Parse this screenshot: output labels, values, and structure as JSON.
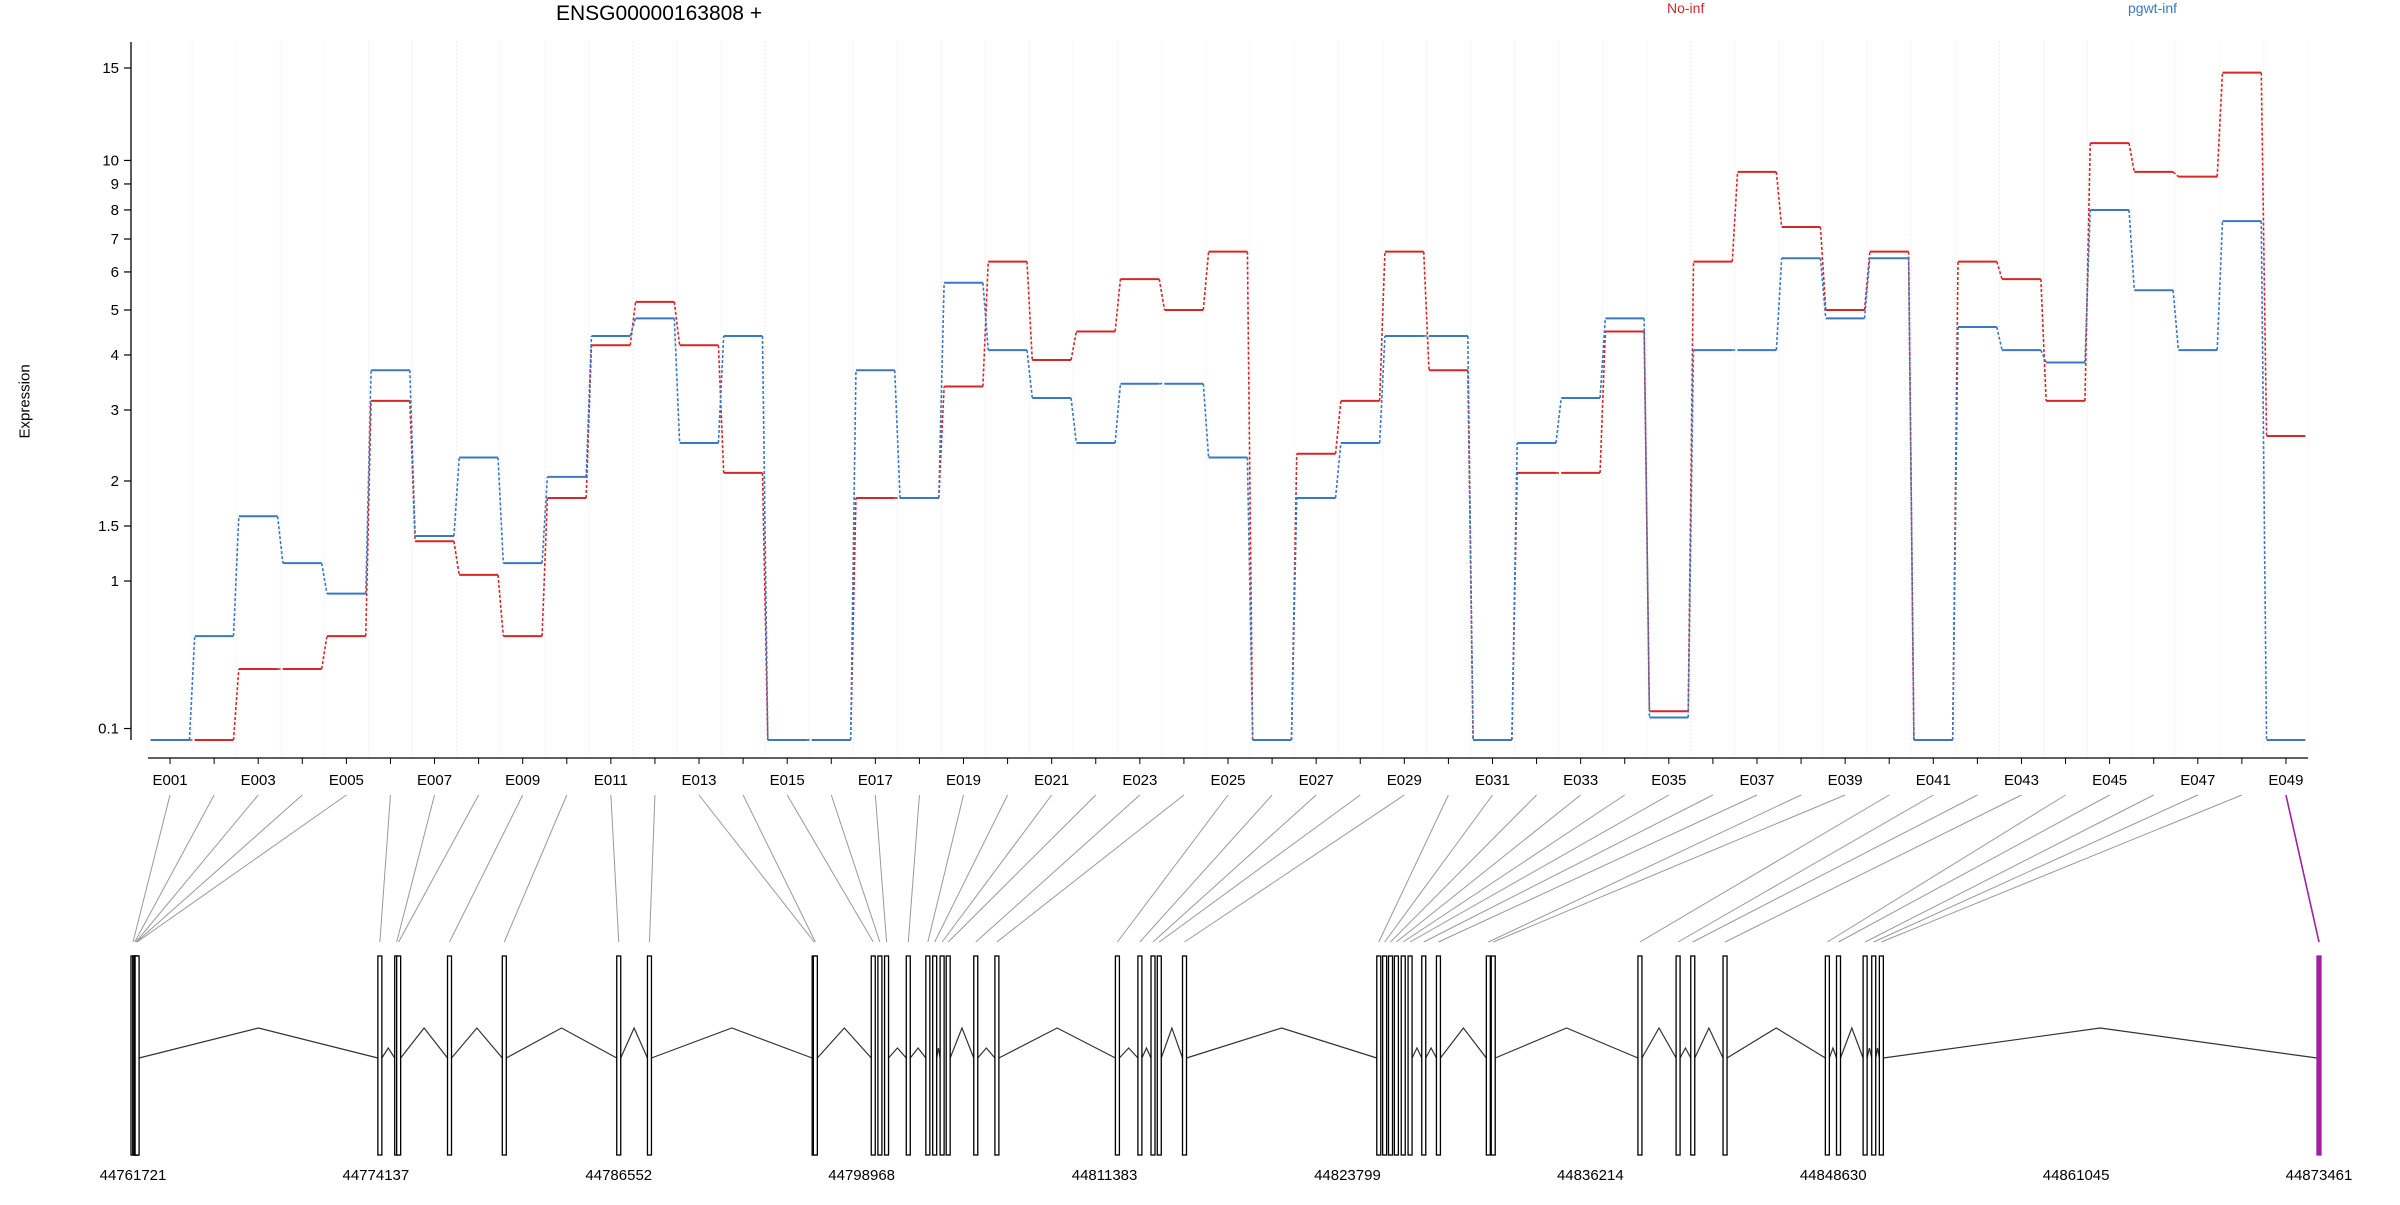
{
  "chart_data": {
    "type": "line",
    "title": "ENSG00000163808 +",
    "ylabel": "Expression",
    "xlabel": "",
    "y_scale": "log1p",
    "y_ticks": [
      0.1,
      1,
      1.5,
      2,
      3,
      4,
      5,
      6,
      7,
      8,
      9,
      10,
      15
    ],
    "exon_tick_labels": [
      "E001",
      "E003",
      "E005",
      "E007",
      "E009",
      "E011",
      "E013",
      "E015",
      "E017",
      "E019",
      "E021",
      "E023",
      "E025",
      "E027",
      "E029",
      "E031",
      "E033",
      "E035",
      "E037",
      "E039",
      "E041",
      "E043",
      "E045",
      "E047",
      "E049"
    ],
    "exons": [
      "E001",
      "E002",
      "E003",
      "E004",
      "E005",
      "E006",
      "E007",
      "E008",
      "E009",
      "E010",
      "E011",
      "E012",
      "E013",
      "E014",
      "E015",
      "E016",
      "E017",
      "E018",
      "E019",
      "E020",
      "E021",
      "E022",
      "E023",
      "E024",
      "E025",
      "E026",
      "E027",
      "E028",
      "E029",
      "E030",
      "E031",
      "E032",
      "E033",
      "E034",
      "E035",
      "E036",
      "E037",
      "E038",
      "E039",
      "E040",
      "E041",
      "E042",
      "E043",
      "E044",
      "E045",
      "E046",
      "E047",
      "E048",
      "E049"
    ],
    "series": [
      {
        "name": "No-inf",
        "color": "#d62728",
        "values": [
          0.05,
          0.05,
          0.4,
          0.4,
          0.6,
          3.15,
          1.35,
          1.05,
          0.6,
          1.8,
          4.2,
          5.2,
          4.2,
          2.1,
          0.05,
          0.05,
          1.8,
          1.8,
          3.4,
          6.3,
          3.9,
          4.5,
          5.8,
          5.0,
          6.6,
          0.05,
          2.35,
          3.15,
          6.6,
          3.7,
          0.05,
          2.1,
          2.1,
          4.5,
          0.18,
          6.3,
          9.5,
          7.4,
          5.0,
          6.6,
          0.05,
          6.3,
          5.8,
          3.15,
          10.8,
          9.5,
          9.3,
          14.7,
          2.6
        ]
      },
      {
        "name": "pgwt-inf",
        "color": "#3a78c3",
        "values": [
          0.05,
          0.6,
          1.6,
          1.15,
          0.9,
          3.7,
          1.4,
          2.3,
          1.15,
          2.05,
          4.4,
          4.8,
          2.5,
          4.4,
          0.05,
          0.05,
          3.7,
          1.8,
          5.7,
          4.1,
          3.2,
          2.5,
          3.45,
          3.45,
          2.3,
          0.05,
          1.8,
          2.5,
          4.4,
          4.4,
          0.05,
          2.5,
          3.2,
          4.8,
          0.15,
          4.1,
          4.1,
          6.4,
          4.8,
          6.4,
          0.05,
          4.6,
          4.1,
          3.85,
          8.0,
          5.5,
          4.1,
          7.6,
          0.05
        ]
      }
    ],
    "genomic_coordinates": [
      "44761721",
      "44774137",
      "44786552",
      "44798968",
      "44811383",
      "44823799",
      "44836214",
      "44848630",
      "44861045",
      "44873461"
    ],
    "genomic_range": [
      44761721,
      44873461
    ],
    "exon_positions": [
      44761721,
      44761810,
      44761870,
      44761900,
      44761930,
      44774340,
      44775200,
      44775300,
      44777900,
      44780700,
      44786550,
      44788120,
      44796540,
      44796600,
      44799560,
      44799900,
      44800240,
      44801350,
      44802350,
      44802700,
      44803080,
      44803390,
      44804800,
      44805880,
      44812040,
      44813190,
      44813860,
      44814180,
      44815470,
      44825400,
      44825700,
      44826000,
      44826300,
      44826650,
      44827000,
      44827700,
      44828450,
      44831000,
      44831250,
      44838750,
      44840700,
      44841450,
      44843100,
      44848330,
      44848900,
      44850260,
      44850700,
      44851090,
      44873461
    ],
    "highlight_color": "#a020a0"
  }
}
